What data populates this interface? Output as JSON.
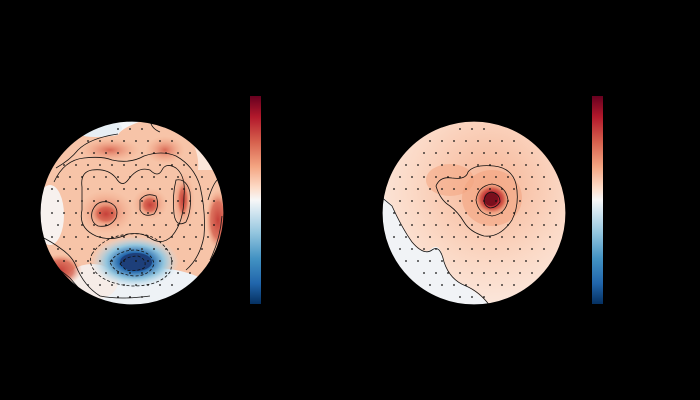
{
  "figure": {
    "background": "#000000",
    "colormap": [
      "#053061",
      "#2166ac",
      "#4393c3",
      "#92c5de",
      "#d1e5f0",
      "#f7f7f7",
      "#fddbc7",
      "#f4a582",
      "#d6604d",
      "#b2182b",
      "#67001f"
    ],
    "panels": [
      {
        "id": "left",
        "contours": true,
        "sensors_shown": true,
        "colorbar": true
      },
      {
        "id": "right",
        "contours": true,
        "sensors_shown": true,
        "colorbar": true
      }
    ]
  }
}
